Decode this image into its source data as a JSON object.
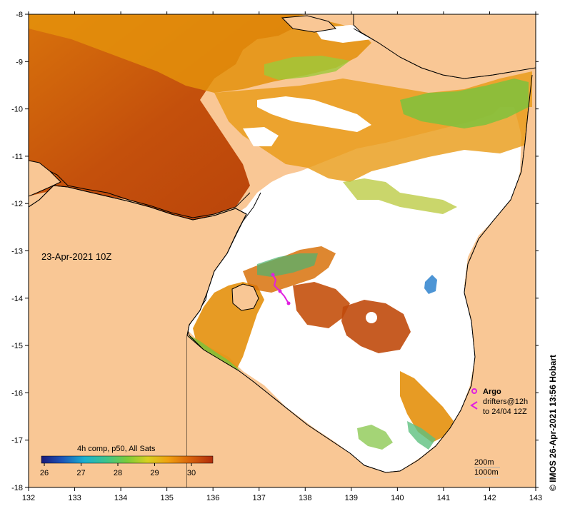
{
  "map": {
    "date_label": "23-Apr-2021 10Z",
    "credit": "© IMOS 26-Apr-2021 13:56 Hobart",
    "lon_ticks": [
      "132",
      "133",
      "134",
      "135",
      "136",
      "137",
      "138",
      "139",
      "140",
      "141",
      "142",
      "143"
    ],
    "lat_ticks": [
      "-8",
      "-9",
      "-10",
      "-11",
      "-12",
      "-13",
      "-14",
      "-15",
      "-16",
      "-17",
      "-18"
    ],
    "colors": {
      "land": "#f9c795",
      "no_data": "#ffffff",
      "warm": "#c8550c",
      "orange": "#e4900c",
      "green": "#7ec23c",
      "argo": "#e020e0"
    }
  },
  "legend": {
    "title": "4h comp, p50, All Sats",
    "ticks": [
      "26",
      "27",
      "28",
      "29",
      "30"
    ],
    "argo_label": "Argo",
    "drifters_label": "drifters@12h",
    "drifters_range": "to 24/04 12Z",
    "contour_200": "200m",
    "contour_1000": "1000m"
  }
}
